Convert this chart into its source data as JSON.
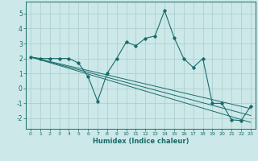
{
  "xlabel": "Humidex (Indice chaleur)",
  "xlim": [
    -0.5,
    23.5
  ],
  "ylim": [
    -2.7,
    5.8
  ],
  "yticks": [
    -2,
    -1,
    0,
    1,
    2,
    3,
    4,
    5
  ],
  "xticks": [
    0,
    1,
    2,
    3,
    4,
    5,
    6,
    7,
    8,
    9,
    10,
    11,
    12,
    13,
    14,
    15,
    16,
    17,
    18,
    19,
    20,
    21,
    22,
    23
  ],
  "bg_color": "#cce8e8",
  "grid_color": "#aacccc",
  "line_color": "#1a6b6b",
  "main_line_x": [
    0,
    1,
    2,
    3,
    4,
    5,
    6,
    7,
    8,
    9,
    10,
    11,
    12,
    13,
    14,
    15,
    16,
    17,
    18,
    19,
    20,
    21,
    22,
    23
  ],
  "main_line_y": [
    2.1,
    2.0,
    2.0,
    2.0,
    2.0,
    1.7,
    0.8,
    -0.85,
    1.0,
    2.0,
    3.1,
    2.85,
    3.35,
    3.5,
    5.2,
    3.4,
    2.0,
    1.4,
    2.0,
    -1.0,
    -1.0,
    -2.1,
    -2.15,
    -1.2
  ],
  "reg_lines": [
    [
      2.1,
      1.95,
      1.8,
      1.65,
      1.5,
      1.35,
      1.2,
      1.05,
      0.9,
      0.75,
      0.6,
      0.45,
      0.3,
      0.15,
      0.0,
      -0.15,
      -0.3,
      -0.45,
      -0.6,
      -0.75,
      -0.9,
      -1.05,
      -1.2,
      -1.35
    ],
    [
      2.1,
      1.93,
      1.76,
      1.59,
      1.42,
      1.25,
      1.08,
      0.91,
      0.74,
      0.57,
      0.4,
      0.23,
      0.06,
      -0.11,
      -0.28,
      -0.45,
      -0.62,
      -0.79,
      -0.96,
      -1.13,
      -1.3,
      -1.47,
      -1.64,
      -1.81
    ],
    [
      2.1,
      1.91,
      1.72,
      1.53,
      1.34,
      1.15,
      0.96,
      0.77,
      0.58,
      0.39,
      0.2,
      0.01,
      -0.18,
      -0.37,
      -0.56,
      -0.75,
      -0.94,
      -1.13,
      -1.32,
      -1.51,
      -1.7,
      -1.89,
      -2.08,
      -2.27
    ]
  ]
}
